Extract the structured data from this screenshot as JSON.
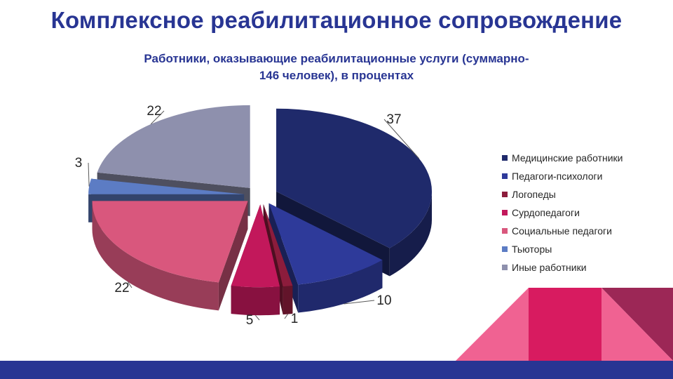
{
  "slide": {
    "title": "Комплексное реабилитационное сопровождение",
    "colors": {
      "accent": "#283593",
      "decor_pink": "#F06292",
      "decor_magenta": "#D81B60",
      "decor_dark": "#9C2756"
    }
  },
  "chart_data": {
    "type": "pie",
    "title_lines": [
      "Работники, оказывающие реабилитационные услуги (суммарно-",
      "146 человек), в процентах"
    ],
    "style": "3d-exploded",
    "legend_position": "right",
    "slices": [
      {
        "label": "Медицинские работники",
        "value": 37,
        "value_label": "37",
        "color": "#1F2A6B"
      },
      {
        "label": "Педагоги-психологи",
        "value": 10,
        "value_label": "10",
        "color": "#2E3A9A"
      },
      {
        "label": "Логопеды",
        "value": 1,
        "value_label": "1",
        "color": "#8C1C3C"
      },
      {
        "label": "Сурдопедагоги",
        "value": 5,
        "value_label": "5",
        "color": "#C2185B"
      },
      {
        "label": "Социальные педагоги",
        "value": 22,
        "value_label": "22",
        "color": "#D9577D"
      },
      {
        "label": "Тьюторы",
        "value": 3,
        "value_label": "3",
        "color": "#5C7CC4"
      },
      {
        "label": "Иные работники",
        "value": 22,
        "value_label": "22",
        "color": "#8E90AD"
      }
    ]
  }
}
